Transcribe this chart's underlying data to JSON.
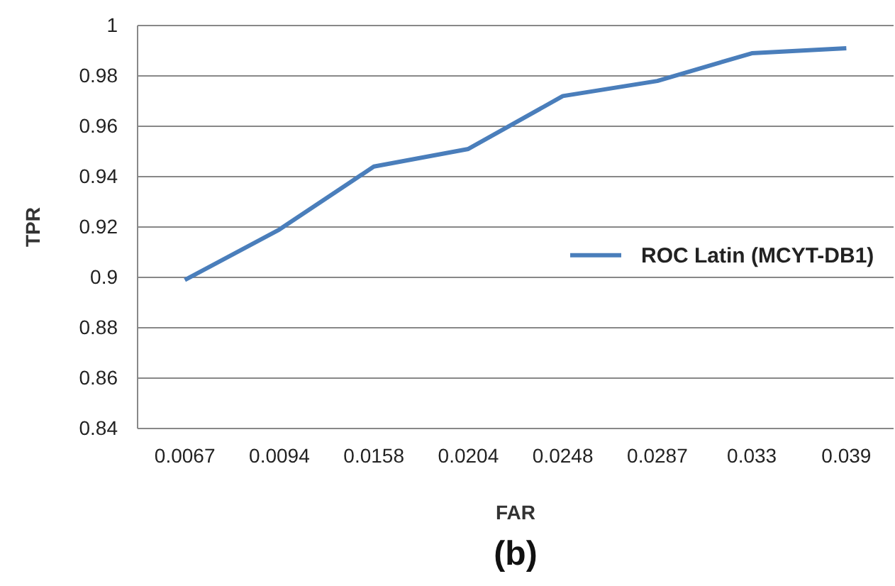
{
  "chart_data": {
    "type": "line",
    "xlabel": "FAR",
    "ylabel": "TPR",
    "annotations": [
      "(b)"
    ],
    "categories": [
      "0.0067",
      "0.0094",
      "0.0158",
      "0.0204",
      "0.0248",
      "0.0287",
      "0.033",
      "0.039"
    ],
    "series": [
      {
        "name": "ROC Latin (MCYT-DB1)",
        "color": "#4a7ebb",
        "values": [
          0.899,
          0.919,
          0.944,
          0.951,
          0.972,
          0.978,
          0.989,
          0.991
        ]
      }
    ],
    "ylim": [
      0.84,
      1
    ],
    "yticks": [
      0.84,
      0.86,
      0.88,
      0.9,
      0.92,
      0.94,
      0.96,
      0.98,
      1
    ],
    "grid": "y",
    "legend": "right",
    "marker": "none",
    "line_style": "solid"
  }
}
